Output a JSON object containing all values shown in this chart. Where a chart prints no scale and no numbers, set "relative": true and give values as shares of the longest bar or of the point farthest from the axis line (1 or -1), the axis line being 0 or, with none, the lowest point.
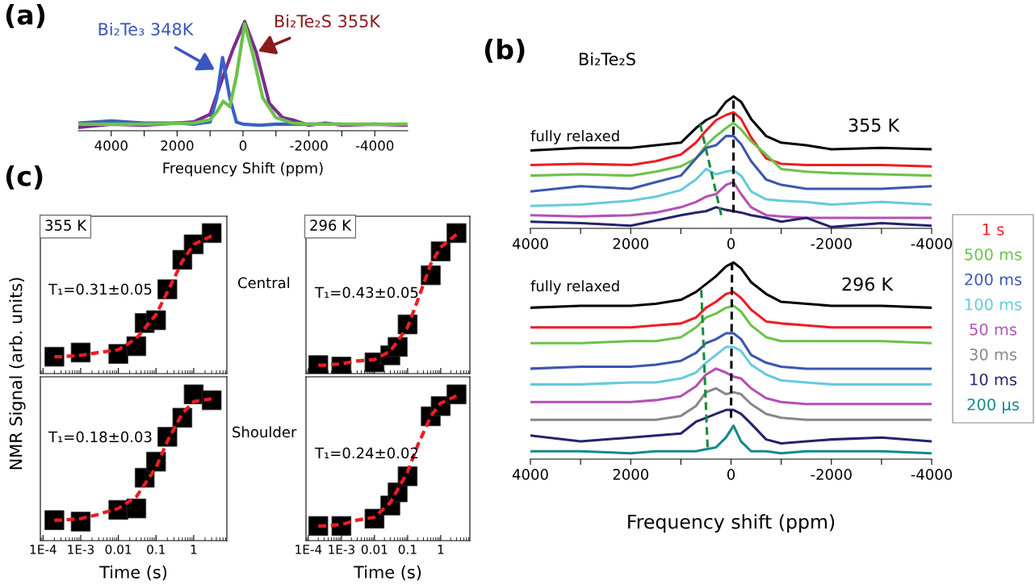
{
  "chart_data": [
    {
      "type": "line",
      "xlabel": "Frequency Shift (ppm)",
      "relative": true,
      "xlim": [
        5000,
        -5000
      ],
      "xticks": [
        4000,
        {
          "value": 3000,
          "label": null
        },
        2000,
        {
          "value": 1000,
          "label": null
        },
        0,
        {
          "value": -1000,
          "label": null
        },
        -2000,
        {
          "value": -3000,
          "label": null
        },
        -4000
      ],
      "annotations": [
        "(a)",
        {
          "text": "Bi₂Te₃ 348K",
          "x": 800,
          "y": 0.55
        },
        {
          "text": "Bi₂Te₂S 355K",
          "x": -400,
          "y": 0.72
        }
      ],
      "series": [
        {
          "color": "#7b2d8e",
          "x": [
            5000,
            4000,
            3000,
            2000,
            1500,
            1000,
            600,
            300,
            -50,
            -400,
            -800,
            -1200,
            -1500,
            -2000,
            -2500,
            -3000,
            -4000,
            -5000
          ],
          "values": [
            0.03,
            0.06,
            0.05,
            0.07,
            0.08,
            0.15,
            0.5,
            0.75,
            1.0,
            0.72,
            0.25,
            0.12,
            0.1,
            0.05,
            0.07,
            0.05,
            0.06,
            0.05
          ]
        },
        {
          "color": "#3a5fc8",
          "x": [
            5000,
            4000,
            3000,
            2000,
            1500,
            1000,
            800,
            620,
            400,
            200,
            0,
            -500,
            -1000,
            -2000,
            -3000
          ],
          "values": [
            0.07,
            0.09,
            0.07,
            0.07,
            0.06,
            0.08,
            0.3,
            0.67,
            0.3,
            0.08,
            0.06,
            0.05,
            0.06,
            0.06,
            0.06
          ]
        },
        {
          "color": "#6cc24a",
          "x": [
            5000,
            3000,
            1500,
            1000,
            800,
            600,
            400,
            200,
            -50,
            -300,
            -600,
            -1000,
            -1500,
            -2000,
            -3000,
            -5000
          ],
          "values": [
            0.06,
            0.06,
            0.07,
            0.1,
            0.17,
            0.27,
            0.22,
            0.5,
            0.98,
            0.7,
            0.3,
            0.12,
            0.07,
            0.06,
            0.06,
            0.06
          ]
        }
      ]
    },
    {
      "type": "line",
      "title": "Bi₂Te₂S",
      "relative": true,
      "xlim": [
        4000,
        -4000
      ],
      "xticks": [
        4000,
        {
          "value": 3000,
          "label": null
        },
        2000,
        {
          "value": 1000,
          "label": null
        },
        0,
        {
          "value": -1000,
          "label": null
        },
        -2000,
        {
          "value": -3000,
          "label": null
        },
        -4000
      ],
      "annotations": [
        "(b)",
        "fully relaxed",
        "355 K"
      ],
      "x": [
        4000,
        3000,
        2000,
        1500,
        1000,
        700,
        500,
        300,
        100,
        -50,
        -200,
        -400,
        -700,
        -1000,
        -1500,
        -2000,
        -3000,
        -4000
      ],
      "series": [
        {
          "color": "#000000",
          "values": [
            0.59,
            0.61,
            0.61,
            0.63,
            0.65,
            0.76,
            0.82,
            0.86,
            0.96,
            1.0,
            0.96,
            0.83,
            0.7,
            0.65,
            0.63,
            0.6,
            0.61,
            0.6
          ]
        },
        {
          "color": "#ee1c24",
          "values": [
            0.48,
            0.49,
            0.48,
            0.51,
            0.56,
            0.65,
            0.74,
            0.82,
            0.86,
            0.88,
            0.83,
            0.69,
            0.53,
            0.49,
            0.48,
            0.48,
            0.48,
            0.47
          ]
        },
        {
          "color": "#6cc24a",
          "values": [
            0.4,
            0.41,
            0.4,
            0.43,
            0.47,
            0.53,
            0.63,
            0.7,
            0.76,
            0.8,
            0.75,
            0.66,
            0.56,
            0.45,
            0.43,
            0.42,
            0.41,
            0.4
          ]
        },
        {
          "color": "#3a56b0",
          "values": [
            0.28,
            0.32,
            0.3,
            0.35,
            0.4,
            0.53,
            0.61,
            0.63,
            0.7,
            0.7,
            0.64,
            0.51,
            0.37,
            0.33,
            0.3,
            0.3,
            0.3,
            0.32
          ]
        },
        {
          "color": "#66cadc",
          "values": [
            0.17,
            0.18,
            0.21,
            0.24,
            0.29,
            0.37,
            0.45,
            0.41,
            0.43,
            0.44,
            0.4,
            0.28,
            0.22,
            0.21,
            0.2,
            0.18,
            0.2,
            0.18
          ]
        },
        {
          "color": "#b450b4",
          "values": [
            0.1,
            0.09,
            0.1,
            0.12,
            0.16,
            0.2,
            0.24,
            0.26,
            0.33,
            0.35,
            0.26,
            0.16,
            0.1,
            0.09,
            0.08,
            0.08,
            0.08,
            0.08
          ]
        },
        {
          "color": "#24246e",
          "values": [
            0.05,
            0.04,
            0.02,
            0.06,
            0.1,
            0.12,
            0.13,
            0.16,
            0.14,
            0.13,
            0.12,
            0.1,
            0.08,
            0.05,
            0.08,
            0.01,
            0.04,
            0.02
          ]
        },
        {
          "color": "#1a8a3a",
          "line_style": "dashed",
          "x": [
            614,
            195
          ],
          "values": [
            0.79,
            0.1
          ]
        },
        {
          "color": "#000000",
          "line_style": "dashed",
          "x": [
            -49,
            -49
          ],
          "values": [
            0.97,
            0.12
          ]
        }
      ]
    },
    {
      "type": "line",
      "xlabel": "Frequency shift (ppm)",
      "relative": true,
      "xlim": [
        4000,
        -4000
      ],
      "legend": "right",
      "xticks": [
        4000,
        {
          "value": 3000,
          "label": null
        },
        2000,
        {
          "value": 1000,
          "label": null
        },
        0,
        {
          "value": -1000,
          "label": null
        },
        -2000,
        {
          "value": -3000,
          "label": null
        },
        -4000
      ],
      "annotations": [
        "fully relaxed",
        "296 K"
      ],
      "x": [
        4000,
        3000,
        2000,
        1500,
        1000,
        700,
        500,
        300,
        100,
        -50,
        -200,
        -400,
        -700,
        -1000,
        -1500,
        -2000,
        -3000,
        -4000
      ],
      "series": [
        {
          "color": "#000000",
          "values": [
            0.77,
            0.78,
            0.78,
            0.79,
            0.81,
            0.85,
            0.89,
            0.93,
            0.98,
            1.0,
            0.97,
            0.9,
            0.84,
            0.8,
            0.79,
            0.78,
            0.78,
            0.77
          ]
        },
        {
          "name": "1 s",
          "color": "#ee1c24",
          "values": [
            0.67,
            0.67,
            0.67,
            0.68,
            0.69,
            0.72,
            0.77,
            0.8,
            0.84,
            0.85,
            0.82,
            0.76,
            0.7,
            0.69,
            0.68,
            0.67,
            0.67,
            0.67
          ]
        },
        {
          "name": "500 ms",
          "color": "#6cc24a",
          "values": [
            0.59,
            0.59,
            0.6,
            0.6,
            0.62,
            0.67,
            0.72,
            0.74,
            0.77,
            0.78,
            0.75,
            0.68,
            0.62,
            0.6,
            0.6,
            0.6,
            0.6,
            0.59
          ]
        },
        {
          "name": "200 ms",
          "color": "#3a56b0",
          "values": [
            0.46,
            0.47,
            0.47,
            0.48,
            0.5,
            0.54,
            0.59,
            0.61,
            0.64,
            0.64,
            0.61,
            0.53,
            0.49,
            0.47,
            0.46,
            0.46,
            0.46,
            0.46
          ]
        },
        {
          "name": "100 ms",
          "color": "#66cadc",
          "values": [
            0.38,
            0.38,
            0.39,
            0.39,
            0.41,
            0.44,
            0.49,
            0.53,
            0.57,
            0.57,
            0.55,
            0.48,
            0.43,
            0.4,
            0.39,
            0.38,
            0.38,
            0.38
          ]
        },
        {
          "name": "50 ms",
          "color": "#b450b4",
          "values": [
            0.29,
            0.29,
            0.29,
            0.3,
            0.32,
            0.37,
            0.43,
            0.46,
            0.44,
            0.42,
            0.41,
            0.36,
            0.31,
            0.29,
            0.28,
            0.28,
            0.28,
            0.28
          ]
        },
        {
          "name": "30 ms",
          "color": "#888888",
          "values": [
            0.2,
            0.2,
            0.2,
            0.2,
            0.22,
            0.27,
            0.34,
            0.36,
            0.33,
            0.34,
            0.33,
            0.28,
            0.23,
            0.21,
            0.2,
            0.2,
            0.2,
            0.2
          ]
        },
        {
          "name": "10 ms",
          "color": "#24246e",
          "values": [
            0.12,
            0.09,
            0.11,
            0.12,
            0.13,
            0.19,
            0.21,
            0.23,
            0.25,
            0.25,
            0.23,
            0.18,
            0.1,
            0.08,
            0.09,
            0.1,
            0.11,
            0.09
          ]
        },
        {
          "name": "200 μs",
          "color": "#128a8a",
          "values": [
            0.04,
            0.04,
            0.03,
            0.04,
            0.04,
            0.04,
            0.05,
            0.06,
            0.11,
            0.17,
            0.09,
            0.04,
            0.04,
            0.03,
            0.04,
            0.04,
            0.04,
            0.03
          ]
        },
        {
          "color": "#1a8a3a",
          "line_style": "dashed",
          "x": [
            593,
            468
          ],
          "values": [
            0.86,
            0.06
          ]
        },
        {
          "color": "#000000",
          "line_style": "dashed",
          "x": [
            -20,
            0
          ],
          "values": [
            1.0,
            0.21
          ]
        }
      ]
    },
    {
      "type": "scatter",
      "ylabel": "NMR Signal (arb. units)",
      "relative": true,
      "log": "x",
      "tick_labels": false,
      "xlim": [
        8.5e-05,
        7.6
      ],
      "xticks": [
        {
          "value": 0.0001,
          "label": null
        },
        {
          "value": 0.001,
          "label": null
        },
        {
          "value": 0.01,
          "label": null
        },
        {
          "value": 0.1,
          "label": null
        },
        {
          "value": 1,
          "label": null
        }
      ],
      "annotations": [
        "(c)",
        "355 K",
        "T₁=0.31±0.05",
        "Central"
      ],
      "series": [
        {
          "color": "#000000",
          "marker": "square",
          "x": [
            0.0002,
            0.001,
            0.01,
            0.03,
            0.05,
            0.1,
            0.2,
            0.5,
            1,
            3
          ],
          "values": [
            0.12,
            0.15,
            0.14,
            0.195,
            0.36,
            0.38,
            0.6,
            0.81,
            0.92,
            1.0
          ]
        },
        {
          "type": "line",
          "color": "#ee1c24",
          "line_style": "dashed",
          "x": [
            0.0002,
            0.0003,
            0.001,
            0.003,
            0.01,
            0.03,
            0.1,
            0.2,
            0.5,
            1,
            3
          ],
          "values": [
            0.12,
            0.12,
            0.13,
            0.15,
            0.17,
            0.25,
            0.42,
            0.58,
            0.8,
            0.92,
            0.98
          ]
        }
      ]
    },
    {
      "type": "scatter",
      "relative": true,
      "log": "x",
      "tick_labels": false,
      "xlim": [
        8.5e-05,
        7.6
      ],
      "xticks": [
        {
          "value": 0.0001,
          "label": null
        },
        {
          "value": 0.001,
          "label": null
        },
        {
          "value": 0.01,
          "label": null
        },
        {
          "value": 0.1,
          "label": null
        },
        {
          "value": 1,
          "label": null
        }
      ],
      "annotations": [
        "296 K",
        "T₁=0.43±0.05"
      ],
      "series": [
        {
          "color": "#000000",
          "marker": "square",
          "x": [
            0.0002,
            0.001,
            0.01,
            0.03,
            0.05,
            0.1,
            0.5,
            1,
            3
          ],
          "values": [
            0.06,
            0.05,
            0.08,
            0.13,
            0.19,
            0.35,
            0.7,
            0.87,
            1.0
          ]
        },
        {
          "type": "line",
          "color": "#ee1c24",
          "line_style": "dashed",
          "x": [
            0.0002,
            0.0003,
            0.001,
            0.003,
            0.01,
            0.03,
            0.1,
            0.2,
            0.5,
            1,
            3
          ],
          "values": [
            0.06,
            0.06,
            0.07,
            0.09,
            0.1,
            0.16,
            0.33,
            0.52,
            0.78,
            0.9,
            0.99
          ]
        }
      ]
    },
    {
      "type": "scatter",
      "xlabel": "Time (s)",
      "relative": true,
      "log": "x",
      "tick_labels": "x",
      "xlim": [
        8.5e-05,
        7.6
      ],
      "xticks": [
        {
          "value": 0.0001,
          "label": "1E-4"
        },
        {
          "value": 0.001,
          "label": "1E-3"
        },
        0.01,
        0.1,
        1
      ],
      "annotations": [
        "T₁=0.18±0.03",
        "Shoulder"
      ],
      "series": [
        {
          "color": "#000000",
          "marker": "square",
          "x": [
            0.0002,
            0.001,
            0.01,
            0.03,
            0.05,
            0.1,
            0.2,
            0.5,
            1,
            3
          ],
          "values": [
            0.14,
            0.13,
            0.21,
            0.22,
            0.43,
            0.54,
            0.71,
            0.84,
            1.0,
            0.96
          ]
        },
        {
          "type": "line",
          "color": "#ee1c24",
          "line_style": "dashed",
          "x": [
            0.0002,
            0.0003,
            0.001,
            0.003,
            0.01,
            0.03,
            0.1,
            0.2,
            0.5,
            1,
            3
          ],
          "values": [
            0.14,
            0.14,
            0.15,
            0.18,
            0.22,
            0.3,
            0.5,
            0.68,
            0.87,
            0.95,
            0.97
          ]
        }
      ]
    },
    {
      "type": "scatter",
      "xlabel": "Time (s)",
      "relative": true,
      "log": "x",
      "tick_labels": "x",
      "xlim": [
        8.5e-05,
        7.6
      ],
      "xticks": [
        {
          "value": 0.0001,
          "label": "1E-4"
        },
        {
          "value": 0.001,
          "label": "1E-3"
        },
        0.01,
        0.1,
        1
      ],
      "annotations": [
        "T₁=0.24±0.02"
      ],
      "series": [
        {
          "color": "#000000",
          "marker": "square",
          "x": [
            0.0002,
            0.001,
            0.01,
            0.03,
            0.05,
            0.1,
            0.5,
            1,
            3
          ],
          "values": [
            0.1,
            0.1,
            0.15,
            0.24,
            0.33,
            0.44,
            0.85,
            0.92,
            1.0
          ]
        },
        {
          "type": "line",
          "color": "#ee1c24",
          "line_style": "dashed",
          "x": [
            0.0002,
            0.0003,
            0.001,
            0.003,
            0.01,
            0.03,
            0.1,
            0.2,
            0.5,
            1,
            3
          ],
          "values": [
            0.1,
            0.1,
            0.11,
            0.14,
            0.16,
            0.26,
            0.47,
            0.65,
            0.85,
            0.94,
            0.99
          ]
        }
      ]
    }
  ]
}
